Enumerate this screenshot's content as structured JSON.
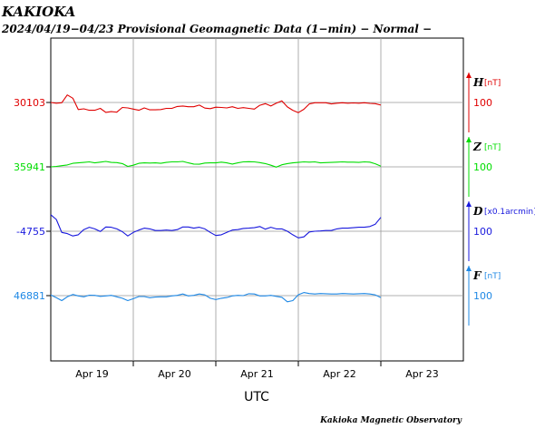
{
  "header": {
    "station": "KAKIOKA",
    "subtitle": "2024/04/19−04/23  Provisional Geomagnetic Data (1−min)  − Normal −"
  },
  "footer": {
    "credit": "Kakioka Magnetic Observatory"
  },
  "chart_data": {
    "type": "line",
    "title": "",
    "xlabel": "UTC",
    "ylabel": "",
    "grid": true,
    "x_ticks": [
      "Apr 19",
      "Apr 20",
      "Apr 21",
      "Apr 22",
      "Apr 23"
    ],
    "scale_bar": 100,
    "series": [
      {
        "name": "H",
        "unit": "[nT]",
        "color": "#e00000",
        "baseline": 30103,
        "values": [
          30103,
          30100,
          30102,
          30135,
          30121,
          30073,
          30076,
          30070,
          30070,
          30078,
          30061,
          30064,
          30062,
          30082,
          30080,
          30075,
          30070,
          30080,
          30072,
          30072,
          30073,
          30078,
          30078,
          30086,
          30088,
          30085,
          30085,
          30092,
          30079,
          30077,
          30083,
          30082,
          30080,
          30085,
          30078,
          30081,
          30078,
          30075,
          30091,
          30098,
          30088,
          30100,
          30110,
          30084,
          30070,
          30060,
          30074,
          30097,
          30102,
          30102,
          30102,
          30097,
          30100,
          30102,
          30100,
          30101,
          30100,
          30102,
          30099,
          30098,
          30092
        ]
      },
      {
        "name": "Z",
        "unit": "[nT]",
        "color": "#00dd00",
        "baseline": 35941,
        "values": [
          35941,
          35943,
          35946,
          35949,
          35956,
          35958,
          35960,
          35962,
          35958,
          35961,
          35964,
          35960,
          35959,
          35955,
          35943,
          35948,
          35956,
          35958,
          35957,
          35958,
          35956,
          35960,
          35962,
          35962,
          35964,
          35958,
          35953,
          35952,
          35957,
          35958,
          35958,
          35961,
          35958,
          35953,
          35958,
          35962,
          35963,
          35962,
          35959,
          35955,
          35948,
          35940,
          35950,
          35955,
          35958,
          35960,
          35962,
          35961,
          35962,
          35958,
          35959,
          35960,
          35961,
          35962,
          35961,
          35961,
          35960,
          35962,
          35961,
          35954,
          35944
        ]
      },
      {
        "name": "D",
        "unit": "[x0.1arcmin]",
        "color": "#1818dd",
        "baseline": -4755,
        "values": [
          -4685,
          -4705,
          -4760,
          -4765,
          -4775,
          -4770,
          -4748,
          -4738,
          -4745,
          -4756,
          -4737,
          -4738,
          -4745,
          -4757,
          -4775,
          -4760,
          -4750,
          -4742,
          -4745,
          -4752,
          -4752,
          -4750,
          -4752,
          -4748,
          -4737,
          -4737,
          -4742,
          -4738,
          -4745,
          -4760,
          -4773,
          -4770,
          -4760,
          -4750,
          -4748,
          -4743,
          -4742,
          -4740,
          -4735,
          -4746,
          -4738,
          -4745,
          -4745,
          -4755,
          -4770,
          -4783,
          -4779,
          -4758,
          -4755,
          -4754,
          -4752,
          -4752,
          -4745,
          -4742,
          -4742,
          -4740,
          -4738,
          -4738,
          -4735,
          -4725,
          -4696
        ]
      },
      {
        "name": "F",
        "unit": "[nT]",
        "color": "#1e88e5",
        "baseline": 46881,
        "values": [
          46884,
          46872,
          46860,
          46876,
          46886,
          46880,
          46876,
          46883,
          46882,
          46878,
          46880,
          46882,
          46876,
          46870,
          46860,
          46868,
          46877,
          46877,
          46872,
          46875,
          46876,
          46876,
          46880,
          46882,
          46888,
          46880,
          46882,
          46888,
          46884,
          46870,
          46864,
          46870,
          46873,
          46880,
          46882,
          46881,
          46889,
          46888,
          46880,
          46880,
          46882,
          46878,
          46874,
          46855,
          46860,
          46885,
          46894,
          46890,
          46888,
          46890,
          46889,
          46888,
          46888,
          46890,
          46889,
          46888,
          46889,
          46890,
          46888,
          46884,
          46873
        ]
      }
    ]
  }
}
